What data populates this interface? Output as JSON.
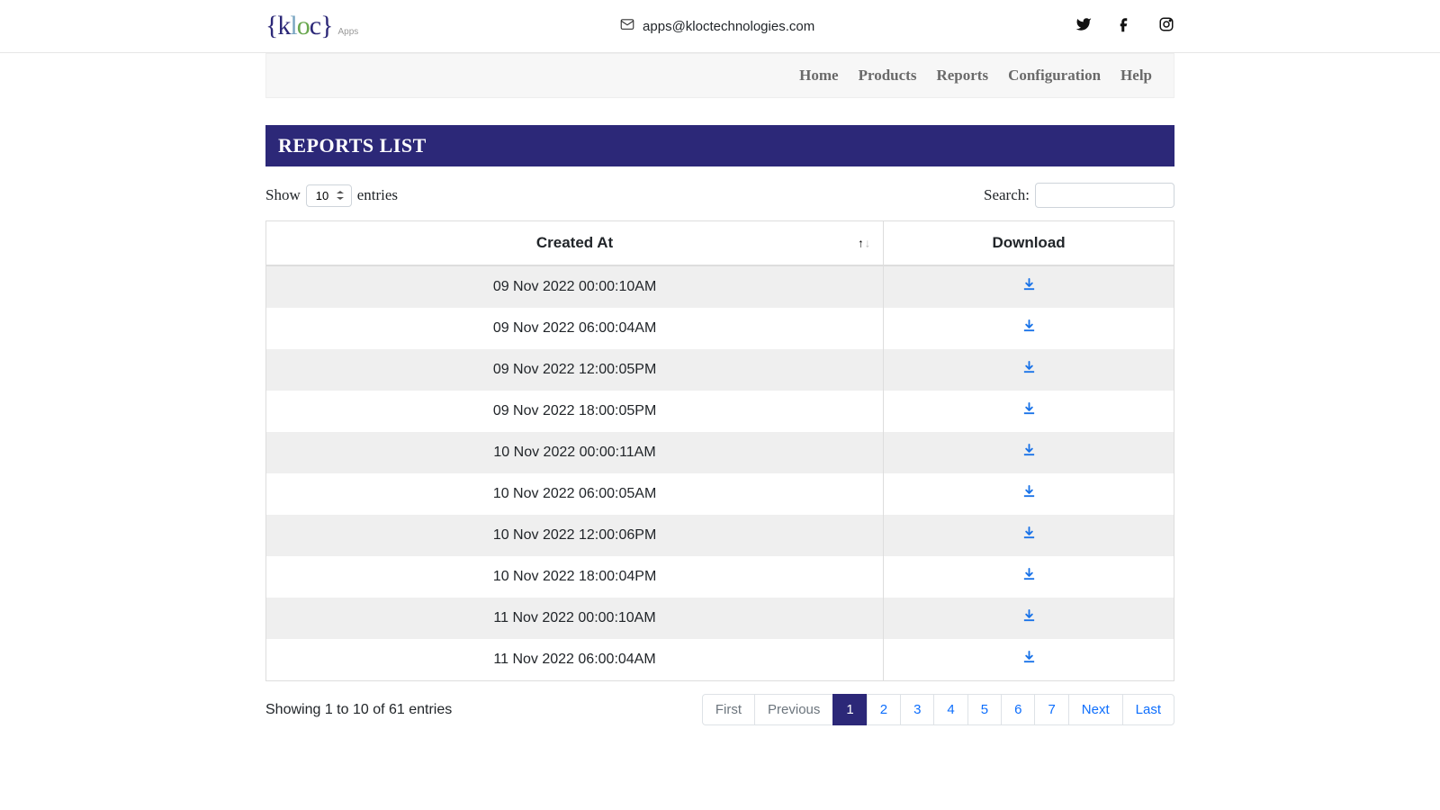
{
  "header": {
    "logo_text_parts": {
      "brace_open": "{",
      "k": "k",
      "l": "l",
      "o": "o",
      "c": "c",
      "brace_close": "}"
    },
    "logo_sub": "Apps",
    "email": "apps@kloctechnologies.com"
  },
  "nav": {
    "items": [
      "Home",
      "Products",
      "Reports",
      "Configuration",
      "Help"
    ]
  },
  "page": {
    "title": "REPORTS LIST",
    "show_label": "Show",
    "entries_label": "entries",
    "entries_value": "10",
    "search_label": "Search:",
    "search_value": ""
  },
  "table": {
    "columns": [
      "Created At",
      "Download"
    ],
    "sort_active_col": 0,
    "sort_dir": "asc",
    "rows": [
      {
        "created_at": "09 Nov 2022 00:00:10AM"
      },
      {
        "created_at": "09 Nov 2022 06:00:04AM"
      },
      {
        "created_at": "09 Nov 2022 12:00:05PM"
      },
      {
        "created_at": "09 Nov 2022 18:00:05PM"
      },
      {
        "created_at": "10 Nov 2022 00:00:11AM"
      },
      {
        "created_at": "10 Nov 2022 06:00:05AM"
      },
      {
        "created_at": "10 Nov 2022 12:00:06PM"
      },
      {
        "created_at": "10 Nov 2022 18:00:04PM"
      },
      {
        "created_at": "11 Nov 2022 00:00:10AM"
      },
      {
        "created_at": "11 Nov 2022 06:00:04AM"
      }
    ]
  },
  "footer": {
    "info": "Showing 1 to 10 of 61 entries",
    "pages": [
      {
        "label": "First",
        "state": "disabled"
      },
      {
        "label": "Previous",
        "state": "disabled"
      },
      {
        "label": "1",
        "state": "active"
      },
      {
        "label": "2",
        "state": ""
      },
      {
        "label": "3",
        "state": ""
      },
      {
        "label": "4",
        "state": ""
      },
      {
        "label": "5",
        "state": ""
      },
      {
        "label": "6",
        "state": ""
      },
      {
        "label": "7",
        "state": ""
      },
      {
        "label": "Next",
        "state": ""
      },
      {
        "label": "Last",
        "state": ""
      }
    ]
  },
  "colors": {
    "primary": "#2c2878",
    "link": "#0d6efd",
    "download_icon": "#1a73e8",
    "row_stripe": "#efefef",
    "border": "#dee2e6"
  }
}
